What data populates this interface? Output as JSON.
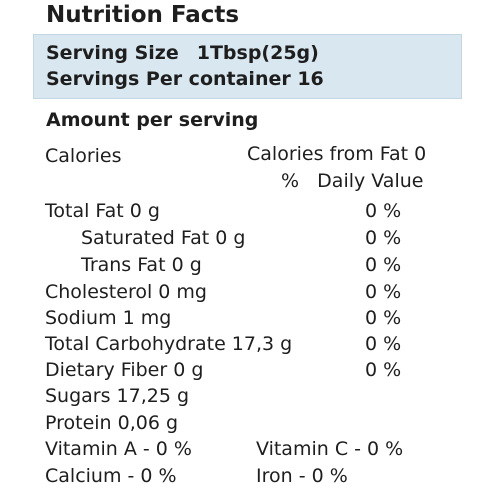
{
  "title": "Nutrition Facts",
  "serving": {
    "size_label": "Serving Size",
    "size_value": "1Tbsp(25g)",
    "servings_text": "Servings Per container 16"
  },
  "amount_title": "Amount per serving",
  "calories_label": "Calories",
  "calories_from_fat": "Calories from Fat 0",
  "daily_value_header": "%   Daily Value",
  "nutrients": [
    {
      "label": "Total Fat 0 g",
      "percent": "0 %"
    },
    {
      "label": "Saturated Fat 0 g",
      "percent": "0 %"
    },
    {
      "label": "Trans Fat 0 g",
      "percent": "0 %"
    },
    {
      "label": "Cholesterol 0 mg",
      "percent": "0 %"
    },
    {
      "label": "Sodium 1 mg",
      "percent": "0 %"
    },
    {
      "label": "Total Carbohydrate 17,3 g",
      "percent": "0 %"
    },
    {
      "label": "Dietary Fiber 0 g",
      "percent": "0 %"
    },
    {
      "label": "Sugars 17,25 g",
      "percent": ""
    },
    {
      "label": "Protein 0,06 g",
      "percent": ""
    }
  ],
  "vitamins": {
    "vitamin_a": "Vitamin A - 0 %",
    "vitamin_c": "Vitamin C - 0 %",
    "calcium": "Calcium - 0 %",
    "iron": "Iron - 0 %"
  }
}
